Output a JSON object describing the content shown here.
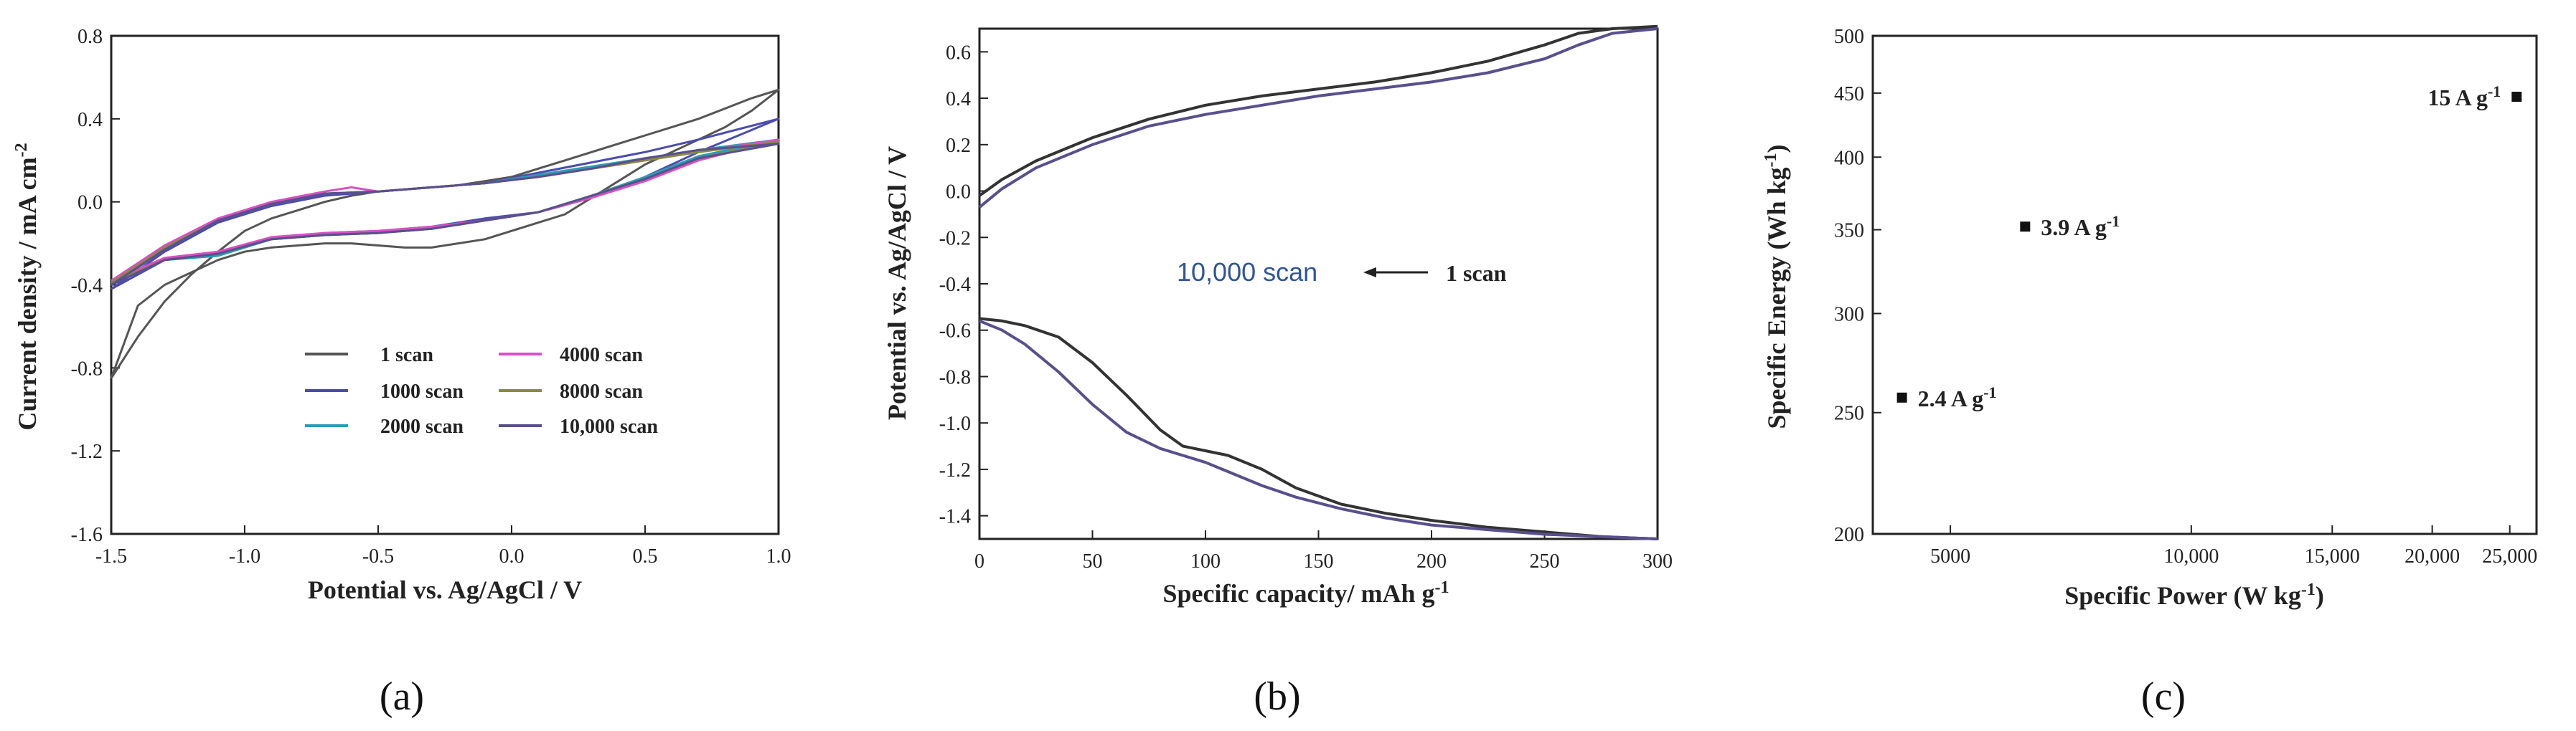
{
  "chart_data": [
    {
      "panel": "a",
      "type": "line",
      "title": "",
      "xlabel": "Potential vs. Ag/AgCl / V",
      "ylabel_main": "Current  density / mA cm",
      "ylabel_sup": "-2",
      "xlim": [
        -1.5,
        1.0
      ],
      "ylim": [
        -1.6,
        0.8
      ],
      "xticks": [
        "-1.5",
        "-1.0",
        "-0.5",
        "0.0",
        "0.5",
        "1.0"
      ],
      "xtick_values": [
        -1.5,
        -1.0,
        -0.5,
        0.0,
        0.5,
        1.0
      ],
      "yticks": [
        "-1.6",
        "-1.2",
        "-0.8",
        "-0.4",
        "0.0",
        "0.4",
        "0.8"
      ],
      "ytick_values": [
        -1.6,
        -1.2,
        -0.8,
        -0.4,
        0.0,
        0.4,
        0.8
      ],
      "legend_position": "bottom-right",
      "series": [
        {
          "name": "1 scan",
          "color": "#555555",
          "x": [
            -1.5,
            -1.4,
            -1.3,
            -1.2,
            -1.1,
            -1.0,
            -0.9,
            -0.8,
            -0.7,
            -0.6,
            -0.5,
            -0.4,
            -0.3,
            -0.2,
            -0.1,
            0.0,
            0.1,
            0.2,
            0.3,
            0.4,
            0.5,
            0.6,
            0.7,
            0.8,
            0.9,
            1.0,
            0.9,
            0.8,
            0.7,
            0.6,
            0.5,
            0.4,
            0.3,
            0.2,
            0.1,
            0.0,
            -0.1,
            -0.2,
            -0.3,
            -0.4,
            -0.5,
            -0.6,
            -0.7,
            -0.8,
            -0.9,
            -1.0,
            -1.1,
            -1.2,
            -1.3,
            -1.4,
            -1.5
          ],
          "y": [
            -0.85,
            -0.65,
            -0.48,
            -0.35,
            -0.24,
            -0.14,
            -0.08,
            -0.04,
            0.0,
            0.03,
            0.05,
            0.06,
            0.07,
            0.08,
            0.1,
            0.12,
            0.16,
            0.2,
            0.24,
            0.28,
            0.32,
            0.36,
            0.4,
            0.45,
            0.5,
            0.54,
            0.44,
            0.36,
            0.3,
            0.24,
            0.18,
            0.1,
            0.02,
            -0.06,
            -0.1,
            -0.14,
            -0.18,
            -0.2,
            -0.22,
            -0.22,
            -0.21,
            -0.2,
            -0.2,
            -0.21,
            -0.22,
            -0.24,
            -0.28,
            -0.34,
            -0.4,
            -0.5,
            -0.85
          ]
        },
        {
          "name": "1000 scan",
          "color": "#4b4bb0",
          "x": [
            -1.5,
            -1.3,
            -1.1,
            -0.9,
            -0.7,
            -0.5,
            -0.3,
            -0.1,
            0.1,
            0.3,
            0.5,
            0.7,
            1.0,
            0.7,
            0.5,
            0.3,
            0.1,
            -0.1,
            -0.3,
            -0.5,
            -0.7,
            -0.9,
            -1.1,
            -1.3,
            -1.5
          ],
          "y": [
            -0.42,
            -0.24,
            -0.1,
            -0.02,
            0.03,
            0.05,
            0.07,
            0.09,
            0.14,
            0.19,
            0.24,
            0.3,
            0.4,
            0.24,
            0.12,
            0.02,
            -0.05,
            -0.08,
            -0.12,
            -0.14,
            -0.15,
            -0.18,
            -0.25,
            -0.28,
            -0.42
          ]
        },
        {
          "name": "2000 scan",
          "color": "#2a9db5",
          "x": [
            -1.5,
            -1.3,
            -1.1,
            -0.9,
            -0.7,
            -0.5,
            -0.3,
            -0.1,
            0.1,
            0.3,
            0.5,
            0.7,
            1.0,
            0.7,
            0.5,
            0.3,
            0.1,
            -0.1,
            -0.3,
            -0.5,
            -0.7,
            -0.9,
            -1.1,
            -1.3,
            -1.5
          ],
          "y": [
            -0.4,
            -0.23,
            -0.09,
            -0.01,
            0.04,
            0.05,
            0.07,
            0.09,
            0.13,
            0.17,
            0.21,
            0.25,
            0.3,
            0.22,
            0.12,
            0.03,
            -0.05,
            -0.09,
            -0.13,
            -0.15,
            -0.16,
            -0.18,
            -0.26,
            -0.28,
            -0.4
          ]
        },
        {
          "name": "4000 scan",
          "color": "#d94fc6",
          "x": [
            -1.5,
            -1.3,
            -1.1,
            -0.9,
            -0.7,
            -0.6,
            -0.5,
            -0.3,
            -0.1,
            0.1,
            0.3,
            0.5,
            0.7,
            1.0,
            0.7,
            0.5,
            0.3,
            0.1,
            -0.1,
            -0.3,
            -0.5,
            -0.7,
            -0.9,
            -1.1,
            -1.3,
            -1.5
          ],
          "y": [
            -0.38,
            -0.21,
            -0.08,
            0.0,
            0.05,
            0.07,
            0.05,
            0.07,
            0.09,
            0.12,
            0.16,
            0.2,
            0.24,
            0.3,
            0.2,
            0.1,
            0.02,
            -0.05,
            -0.09,
            -0.12,
            -0.14,
            -0.15,
            -0.17,
            -0.24,
            -0.27,
            -0.38
          ]
        },
        {
          "name": "8000 scan",
          "color": "#8a8a40",
          "x": [
            -1.5,
            -1.3,
            -1.1,
            -0.9,
            -0.7,
            -0.5,
            -0.3,
            -0.1,
            0.1,
            0.3,
            0.5,
            0.7,
            1.0,
            0.7,
            0.5,
            0.3,
            0.1,
            -0.1,
            -0.3,
            -0.5,
            -0.7,
            -0.9,
            -1.1,
            -1.3,
            -1.5
          ],
          "y": [
            -0.39,
            -0.22,
            -0.09,
            -0.01,
            0.04,
            0.05,
            0.07,
            0.09,
            0.12,
            0.16,
            0.2,
            0.24,
            0.29,
            0.21,
            0.11,
            0.03,
            -0.05,
            -0.09,
            -0.13,
            -0.15,
            -0.16,
            -0.18,
            -0.25,
            -0.28,
            -0.39
          ]
        },
        {
          "name": "10,000 scan",
          "color": "#5a4f8c",
          "x": [
            -1.5,
            -1.3,
            -1.1,
            -0.9,
            -0.7,
            -0.5,
            -0.3,
            -0.1,
            0.1,
            0.3,
            0.5,
            0.7,
            1.0,
            0.7,
            0.5,
            0.3,
            0.1,
            -0.1,
            -0.3,
            -0.5,
            -0.7,
            -0.9,
            -1.1,
            -1.3,
            -1.5
          ],
          "y": [
            -0.4,
            -0.23,
            -0.09,
            -0.01,
            0.04,
            0.05,
            0.07,
            0.09,
            0.12,
            0.16,
            0.21,
            0.25,
            0.28,
            0.21,
            0.11,
            0.03,
            -0.05,
            -0.09,
            -0.13,
            -0.15,
            -0.16,
            -0.18,
            -0.25,
            -0.28,
            -0.4
          ]
        }
      ]
    },
    {
      "panel": "b",
      "type": "line",
      "title": "",
      "xlabel_main": "Specific  capacity/ mAh g",
      "xlabel_sup": "-1",
      "ylabel": "Potential vs. Ag/AgCl / V",
      "xlim": [
        0,
        300
      ],
      "ylim": [
        -1.5,
        0.7
      ],
      "xticks": [
        "0",
        "50",
        "100",
        "150",
        "200",
        "250",
        "300"
      ],
      "xtick_values": [
        0,
        50,
        100,
        150,
        200,
        250,
        300
      ],
      "yticks": [
        "-1.4",
        "-1.2",
        "-1.0",
        "-0.8",
        "-0.6",
        "-0.4",
        "-0.2",
        "0.0",
        "0.2",
        "0.4",
        "0.6"
      ],
      "ytick_values": [
        -1.4,
        -1.2,
        -1.0,
        -0.8,
        -0.6,
        -0.4,
        -0.2,
        0.0,
        0.2,
        0.4,
        0.6
      ],
      "annotations": [
        {
          "text": "10,000 scan",
          "x": 60,
          "y": -0.32,
          "style": "blue"
        },
        {
          "text": "1 scan",
          "x": 210,
          "y": -0.32,
          "style": "bold"
        }
      ],
      "series": [
        {
          "name": "1 scan charge",
          "color": "#333333",
          "x": [
            0,
            10,
            25,
            50,
            75,
            100,
            125,
            150,
            175,
            200,
            225,
            250,
            265,
            280,
            300
          ],
          "y": [
            -0.02,
            0.05,
            0.13,
            0.23,
            0.31,
            0.37,
            0.41,
            0.44,
            0.47,
            0.51,
            0.56,
            0.63,
            0.68,
            0.7,
            0.71
          ]
        },
        {
          "name": "10,000 scan charge",
          "color": "#5a4f8c",
          "x": [
            0,
            10,
            25,
            50,
            75,
            100,
            125,
            150,
            175,
            200,
            225,
            250,
            265,
            280,
            300
          ],
          "y": [
            -0.07,
            0.01,
            0.1,
            0.2,
            0.28,
            0.33,
            0.37,
            0.41,
            0.44,
            0.47,
            0.51,
            0.57,
            0.63,
            0.68,
            0.7
          ]
        },
        {
          "name": "1 scan discharge",
          "color": "#333333",
          "x": [
            0,
            10,
            20,
            35,
            50,
            65,
            80,
            90,
            100,
            110,
            125,
            140,
            160,
            180,
            200,
            225,
            250,
            275,
            300
          ],
          "y": [
            -0.55,
            -0.56,
            -0.58,
            -0.63,
            -0.74,
            -0.88,
            -1.03,
            -1.1,
            -1.12,
            -1.14,
            -1.2,
            -1.28,
            -1.35,
            -1.39,
            -1.42,
            -1.45,
            -1.47,
            -1.49,
            -1.5
          ]
        },
        {
          "name": "10,000 scan discharge",
          "color": "#5a4f8c",
          "x": [
            0,
            10,
            20,
            35,
            50,
            65,
            80,
            90,
            100,
            110,
            125,
            140,
            160,
            180,
            200,
            225,
            250,
            275,
            300
          ],
          "y": [
            -0.56,
            -0.6,
            -0.66,
            -0.78,
            -0.92,
            -1.04,
            -1.11,
            -1.14,
            -1.17,
            -1.21,
            -1.27,
            -1.32,
            -1.37,
            -1.41,
            -1.44,
            -1.46,
            -1.48,
            -1.49,
            -1.5
          ]
        }
      ]
    },
    {
      "panel": "c",
      "type": "scatter",
      "title": "",
      "xlabel_main": "Specific Power (W kg",
      "xlabel_sup": "-1",
      "xlabel_end": ")",
      "ylabel_main": "Specific Energy (Wh kg",
      "ylabel_sup": "-1",
      "ylabel_end": ")",
      "xscale": "log",
      "yscale": "log",
      "xlim": [
        4000,
        27000
      ],
      "ylim": [
        200,
        500
      ],
      "xticks": [
        "5000",
        "10,000",
        "15,000",
        "20,000",
        "25,000"
      ],
      "xtick_values": [
        5000,
        10000,
        15000,
        20000,
        25000
      ],
      "yticks": [
        "200",
        "250",
        "300",
        "350",
        "400",
        "450",
        "500"
      ],
      "ytick_values": [
        200,
        250,
        300,
        350,
        400,
        450,
        500
      ],
      "points": [
        {
          "x": 4350,
          "y": 257,
          "label": "2.4 A g",
          "sup": "-1"
        },
        {
          "x": 6200,
          "y": 352,
          "label": "3.9 A g",
          "sup": "-1"
        },
        {
          "x": 25500,
          "y": 447,
          "label": "15 A g",
          "sup": "-1"
        }
      ]
    }
  ],
  "panel_labels": {
    "a": "(a)",
    "b": "(b)",
    "c": "(c)"
  }
}
